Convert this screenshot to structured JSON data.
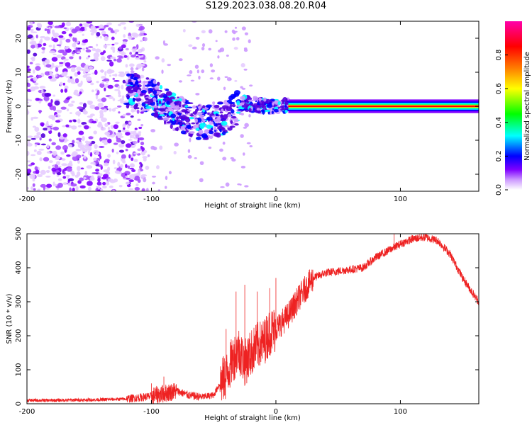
{
  "title": "S129.2023.038.08.20.R04",
  "chart_data": [
    {
      "type": "heatmap",
      "xlabel": "Height of straight line (km)",
      "ylabel": "Frequency (Hz)",
      "xlim": [
        -200,
        163
      ],
      "ylim": [
        -25,
        25
      ],
      "x_ticks": [
        -200,
        -100,
        0,
        100
      ],
      "y_ticks": [
        -20,
        -10,
        0,
        10,
        20
      ],
      "colorbar": {
        "label": "Normalized spectral amplitude",
        "range": [
          0,
          1
        ],
        "ticks": [
          0.0,
          0.2,
          0.4,
          0.6,
          0.8
        ],
        "colormap": [
          "#ffffff",
          "#cc99ff",
          "#7f00ff",
          "#0000ff",
          "#00ffff",
          "#00ff00",
          "#ffff00",
          "#ff7f00",
          "#ff0000",
          "#ff00aa"
        ]
      },
      "features": [
        {
          "name": "diffuse noise",
          "x_range": [
            -200,
            -120
          ],
          "freq_range": [
            -25,
            25
          ],
          "amplitude": 0.1
        },
        {
          "name": "tilted feature",
          "points": [
            [
              -120,
              5
            ],
            [
              -100,
              3
            ],
            [
              -80,
              -2
            ],
            [
              -60,
              -5
            ],
            [
              -40,
              -3
            ],
            [
              -25,
              1
            ],
            [
              -10,
              0
            ],
            [
              10,
              0
            ]
          ],
          "amplitude": 0.35
        },
        {
          "name": "steady line",
          "x_range": [
            10,
            163
          ],
          "freq": 0,
          "amplitude": 1.0
        }
      ]
    },
    {
      "type": "line",
      "xlabel": "Height of straight line (km)",
      "ylabel": "SNR (10 * v/v)",
      "xlim": [
        -200,
        163
      ],
      "ylim": [
        0,
        500
      ],
      "x_ticks": [
        -200,
        -100,
        0,
        100
      ],
      "y_ticks": [
        0,
        100,
        200,
        300,
        400,
        500
      ],
      "color": "#ee2222",
      "x": [
        -200,
        -180,
        -160,
        -140,
        -120,
        -110,
        -100,
        -90,
        -80,
        -70,
        -60,
        -50,
        -45,
        -40,
        -35,
        -30,
        -25,
        -20,
        -15,
        -10,
        -5,
        0,
        10,
        20,
        30,
        40,
        50,
        60,
        70,
        80,
        90,
        100,
        110,
        120,
        130,
        140,
        150,
        160,
        163
      ],
      "y": [
        10,
        10,
        11,
        12,
        14,
        18,
        22,
        30,
        38,
        25,
        20,
        25,
        60,
        80,
        130,
        160,
        120,
        150,
        170,
        180,
        210,
        220,
        260,
        320,
        370,
        385,
        390,
        395,
        400,
        430,
        450,
        470,
        485,
        490,
        480,
        440,
        370,
        315,
        300
      ],
      "noise_spikes": [
        [
          -100,
          60
        ],
        [
          -90,
          80
        ],
        [
          -40,
          220
        ],
        [
          -32,
          330
        ],
        [
          -25,
          350
        ],
        [
          -15,
          330
        ],
        [
          -5,
          340
        ],
        [
          0,
          370
        ],
        [
          95,
          525
        ],
        [
          120,
          500
        ]
      ]
    }
  ]
}
